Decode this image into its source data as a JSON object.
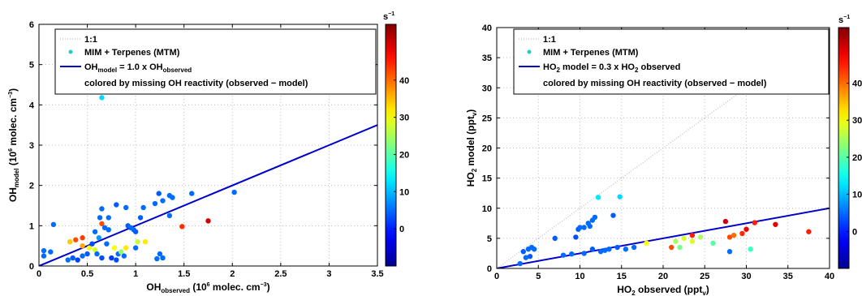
{
  "chart_data": [
    {
      "type": "scatter",
      "xlabel": {
        "base": "OH",
        "sub": "observed",
        "rest": " (10",
        "sup": "6",
        "rest2": " molec. cm",
        "sup2": "−3",
        "end": ")"
      },
      "ylabel": {
        "base": "OH",
        "sub": "model",
        "rest": " (10",
        "sup": "6",
        "rest2": " molec. cm",
        "sup2": "−3",
        "end": ")"
      },
      "xlim": [
        0,
        3.5
      ],
      "ylim": [
        0,
        6
      ],
      "xticks": [
        0,
        0.5,
        1,
        1.5,
        2,
        2.5,
        3,
        3.5
      ],
      "xtick_labels": [
        "0",
        "0.5",
        "1",
        "1.5",
        "2",
        "2.5",
        "3",
        "3.5"
      ],
      "yticks": [
        0,
        1,
        2,
        3,
        4,
        5,
        6
      ],
      "ytick_labels": [
        "0",
        "1",
        "2",
        "3",
        "4",
        "5",
        "6"
      ],
      "grid": true,
      "legend_position": "top",
      "legend": [
        {
          "label": "1:1",
          "style": "dotted-line",
          "color": "#c8c8c8"
        },
        {
          "label": "MIM + Terpenes (MTM)",
          "style": "marker",
          "color": "#22cccc"
        },
        {
          "label_parts": {
            "base": "OH",
            "sub": "model",
            "mid": " = 1.0 x OH",
            "sub2": "observed"
          },
          "style": "line",
          "color": "#0000cc"
        },
        {
          "label": "colored by missing OH reactivity (observed − model)",
          "style": "none"
        }
      ],
      "fit_line": {
        "slope": 1.0,
        "intercept": 0,
        "color": "#0000cc"
      },
      "one_to_one": true,
      "colorbar": {
        "unit_base": "s",
        "unit_sup": "−1",
        "range": [
          -10,
          55
        ],
        "ticks": [
          0,
          10,
          20,
          30,
          40
        ],
        "tick_labels": [
          "0",
          "10",
          "20",
          "30",
          "40"
        ]
      },
      "points": [
        [
          0.05,
          0.25,
          5
        ],
        [
          0.05,
          0.38,
          5
        ],
        [
          0.12,
          0.35,
          5
        ],
        [
          0.15,
          1.03,
          5
        ],
        [
          0.3,
          0.15,
          5
        ],
        [
          0.32,
          0.6,
          34
        ],
        [
          0.35,
          0.2,
          4
        ],
        [
          0.38,
          0.65,
          42
        ],
        [
          0.4,
          0.15,
          2
        ],
        [
          0.45,
          0.25,
          5
        ],
        [
          0.45,
          0.5,
          36
        ],
        [
          0.45,
          0.7,
          43
        ],
        [
          0.5,
          0.3,
          4
        ],
        [
          0.52,
          0.45,
          30
        ],
        [
          0.55,
          0.55,
          3
        ],
        [
          0.58,
          0.85,
          5
        ],
        [
          0.58,
          0.4,
          28
        ],
        [
          0.6,
          0.3,
          5
        ],
        [
          0.62,
          0.7,
          8
        ],
        [
          0.63,
          1.2,
          5
        ],
        [
          0.65,
          0.2,
          3
        ],
        [
          0.65,
          1.05,
          42
        ],
        [
          0.68,
          0.95,
          5
        ],
        [
          0.7,
          0.55,
          5
        ],
        [
          0.65,
          4.18,
          12
        ],
        [
          0.65,
          1.42,
          5
        ],
        [
          0.72,
          1.2,
          5
        ],
        [
          0.72,
          0.9,
          5
        ],
        [
          0.75,
          0.2,
          2
        ],
        [
          0.78,
          0.45,
          30
        ],
        [
          0.8,
          0.15,
          3
        ],
        [
          0.8,
          1.52,
          4
        ],
        [
          0.82,
          0.3,
          5
        ],
        [
          0.85,
          0.35,
          24
        ],
        [
          0.88,
          0.25,
          5
        ],
        [
          0.9,
          0.45,
          32
        ],
        [
          0.9,
          1.45,
          5
        ],
        [
          0.92,
          1.0,
          4
        ],
        [
          0.95,
          0.95,
          5
        ],
        [
          0.98,
          0.9,
          5
        ],
        [
          1.0,
          0.85,
          4
        ],
        [
          1.0,
          0.45,
          5
        ],
        [
          1.02,
          0.6,
          27
        ],
        [
          1.05,
          1.2,
          4
        ],
        [
          1.08,
          1.45,
          5
        ],
        [
          1.1,
          0.6,
          32
        ],
        [
          1.2,
          1.55,
          5
        ],
        [
          1.22,
          0.18,
          5
        ],
        [
          1.24,
          1.8,
          4
        ],
        [
          1.25,
          0.3,
          5
        ],
        [
          1.28,
          1.62,
          5
        ],
        [
          1.28,
          0.2,
          5
        ],
        [
          1.35,
          1.75,
          5
        ],
        [
          1.38,
          1.7,
          5
        ],
        [
          1.35,
          1.25,
          5
        ],
        [
          1.48,
          0.98,
          44
        ],
        [
          1.58,
          1.8,
          5
        ],
        [
          1.75,
          1.12,
          50
        ],
        [
          2.02,
          1.83,
          5
        ]
      ]
    },
    {
      "type": "scatter",
      "xlabel": {
        "base": "HO",
        "sub": "2",
        "rest": " observed (ppt",
        "sub2": "v",
        "end": ")"
      },
      "ylabel": {
        "base": "HO",
        "sub": "2",
        "rest": " model (ppt",
        "sub2": "v",
        "end": ")"
      },
      "xlim": [
        0,
        40
      ],
      "ylim": [
        0,
        40
      ],
      "xticks": [
        0,
        5,
        10,
        15,
        20,
        25,
        30,
        35,
        40
      ],
      "xtick_labels": [
        "0",
        "5",
        "10",
        "15",
        "20",
        "25",
        "30",
        "35",
        "40"
      ],
      "yticks": [
        0,
        5,
        10,
        15,
        20,
        25,
        30,
        35,
        40
      ],
      "ytick_labels": [
        "0",
        "5",
        "10",
        "15",
        "20",
        "25",
        "30",
        "35",
        "40"
      ],
      "grid": true,
      "legend_position": "top",
      "legend": [
        {
          "label": "1:1",
          "style": "dotted-line",
          "color": "#c8c8c8"
        },
        {
          "label": "MIM + Terpenes (MTM)",
          "style": "marker",
          "color": "#22cccc"
        },
        {
          "label_parts": {
            "base": "HO",
            "sub": "2",
            "mid": " model = 0.3 x HO",
            "sub2": "2",
            "end": " observed"
          },
          "style": "line",
          "color": "#0000cc"
        },
        {
          "label": "colored by missing OH reactivity (observed − model)",
          "style": "none"
        }
      ],
      "fit_line": {
        "slope": 0.25,
        "intercept": 0,
        "color": "#0000cc"
      },
      "one_to_one": true,
      "colorbar": {
        "unit_base": "s",
        "unit_sup": "−1",
        "range": [
          -10,
          55
        ],
        "ticks": [
          0,
          10,
          20,
          30,
          40
        ],
        "tick_labels": [
          "0",
          "10",
          "20",
          "30",
          "40"
        ]
      },
      "points": [
        [
          2.8,
          0.8,
          5
        ],
        [
          3.2,
          2.8,
          4
        ],
        [
          3.5,
          1.8,
          5
        ],
        [
          3.8,
          3.2,
          5
        ],
        [
          4.0,
          2.0,
          4
        ],
        [
          4.2,
          3.5,
          5
        ],
        [
          4.5,
          3.2,
          5
        ],
        [
          7.0,
          5.0,
          4
        ],
        [
          8.0,
          2.2,
          5
        ],
        [
          9.0,
          2.4,
          5
        ],
        [
          9.5,
          5.2,
          3
        ],
        [
          9.8,
          6.5,
          4
        ],
        [
          10.0,
          6.8,
          5
        ],
        [
          10.5,
          6.8,
          5
        ],
        [
          10.5,
          2.5,
          5
        ],
        [
          11.0,
          7.5,
          5
        ],
        [
          11.2,
          7.0,
          5
        ],
        [
          11.5,
          8.0,
          5
        ],
        [
          11.5,
          3.2,
          4
        ],
        [
          11.8,
          8.5,
          5
        ],
        [
          12.2,
          11.8,
          13
        ],
        [
          12.5,
          2.8,
          5
        ],
        [
          13.0,
          3.0,
          5
        ],
        [
          13.5,
          3.2,
          5
        ],
        [
          14.0,
          8.8,
          4
        ],
        [
          14.5,
          3.5,
          4
        ],
        [
          14.8,
          11.9,
          12
        ],
        [
          15.5,
          3.2,
          5
        ],
        [
          16.5,
          3.5,
          5
        ],
        [
          18.0,
          4.2,
          30
        ],
        [
          21.0,
          3.5,
          42
        ],
        [
          21.5,
          4.5,
          25
        ],
        [
          22.0,
          3.5,
          22
        ],
        [
          22.5,
          5.0,
          28
        ],
        [
          23.5,
          5.5,
          45
        ],
        [
          23.5,
          4.5,
          28
        ],
        [
          24.5,
          5.2,
          25
        ],
        [
          26.0,
          4.2,
          20
        ],
        [
          27.5,
          7.8,
          50
        ],
        [
          28.0,
          5.2,
          42
        ],
        [
          28.5,
          5.5,
          40
        ],
        [
          28.0,
          2.8,
          5
        ],
        [
          29.5,
          5.8,
          44
        ],
        [
          30.0,
          6.5,
          48
        ],
        [
          30.5,
          3.2,
          18
        ],
        [
          31.0,
          7.6,
          45
        ],
        [
          33.5,
          7.3,
          48
        ],
        [
          37.5,
          6.1,
          45
        ]
      ]
    }
  ]
}
